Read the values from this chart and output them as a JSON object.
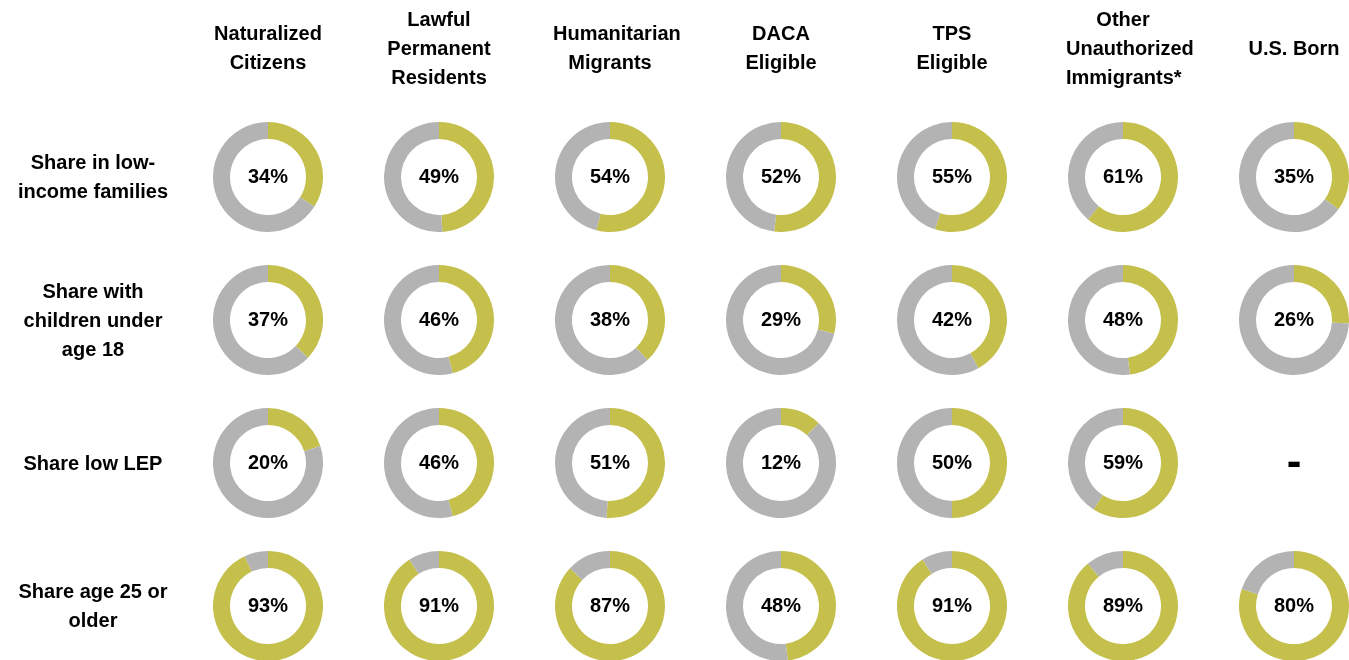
{
  "chart_data": [
    {
      "type": "donut",
      "title": "Naturalized Citizens",
      "ylabel": "Share in low-income families",
      "categories": [
        null,
        null
      ],
      "values": [
        34,
        66
      ],
      "colors": [
        "#c5bf4c",
        "#b3b3b3"
      ],
      "value_labels": [
        "34%",
        null
      ]
    },
    {
      "type": "donut",
      "title": "Lawful Permanent Residents",
      "categories": [
        null,
        null
      ],
      "values": [
        49,
        51
      ],
      "colors": [
        "#c5bf4c",
        "#b3b3b3"
      ],
      "value_labels": [
        "49%",
        null
      ]
    },
    {
      "type": "donut",
      "title": "Humanitarian Migrants",
      "categories": [
        null,
        null
      ],
      "values": [
        54,
        46
      ],
      "colors": [
        "#c5bf4c",
        "#b3b3b3"
      ],
      "value_labels": [
        "54%",
        null
      ]
    },
    {
      "type": "donut",
      "title": "DACA Eligible",
      "categories": [
        null,
        null
      ],
      "values": [
        52,
        48
      ],
      "colors": [
        "#c5bf4c",
        "#b3b3b3"
      ],
      "value_labels": [
        "52%",
        null
      ]
    },
    {
      "type": "donut",
      "title": "TPS Eligible",
      "categories": [
        null,
        null
      ],
      "values": [
        55,
        45
      ],
      "colors": [
        "#c5bf4c",
        "#b3b3b3"
      ],
      "value_labels": [
        "55%",
        null
      ]
    },
    {
      "type": "donut",
      "title": "Other Unauthorized Immigrants*",
      "categories": [
        null,
        null
      ],
      "values": [
        61,
        39
      ],
      "colors": [
        "#c5bf4c",
        "#b3b3b3"
      ],
      "value_labels": [
        "61%",
        null
      ]
    },
    {
      "type": "donut",
      "title": "U.S. Born",
      "categories": [
        null,
        null
      ],
      "values": [
        35,
        65
      ],
      "colors": [
        "#c5bf4c",
        "#b3b3b3"
      ],
      "value_labels": [
        "35%",
        null
      ]
    },
    {
      "type": "donut",
      "ylabel": "Share with children under age 18",
      "categories": [
        null,
        null
      ],
      "values": [
        37,
        63
      ],
      "colors": [
        "#c5bf4c",
        "#b3b3b3"
      ],
      "value_labels": [
        "37%",
        null
      ]
    },
    {
      "type": "donut",
      "categories": [
        null,
        null
      ],
      "values": [
        46,
        54
      ],
      "colors": [
        "#c5bf4c",
        "#b3b3b3"
      ],
      "value_labels": [
        "46%",
        null
      ]
    },
    {
      "type": "donut",
      "categories": [
        null,
        null
      ],
      "values": [
        38,
        62
      ],
      "colors": [
        "#c5bf4c",
        "#b3b3b3"
      ],
      "value_labels": [
        "38%",
        null
      ]
    },
    {
      "type": "donut",
      "categories": [
        null,
        null
      ],
      "values": [
        29,
        71
      ],
      "colors": [
        "#c5bf4c",
        "#b3b3b3"
      ],
      "value_labels": [
        "29%",
        null
      ]
    },
    {
      "type": "donut",
      "categories": [
        null,
        null
      ],
      "values": [
        42,
        58
      ],
      "colors": [
        "#c5bf4c",
        "#b3b3b3"
      ],
      "value_labels": [
        "42%",
        null
      ]
    },
    {
      "type": "donut",
      "categories": [
        null,
        null
      ],
      "values": [
        48,
        52
      ],
      "colors": [
        "#c5bf4c",
        "#b3b3b3"
      ],
      "value_labels": [
        "48%",
        null
      ]
    },
    {
      "type": "donut",
      "categories": [
        null,
        null
      ],
      "values": [
        26,
        74
      ],
      "colors": [
        "#c5bf4c",
        "#b3b3b3"
      ],
      "value_labels": [
        "26%",
        null
      ]
    },
    {
      "type": "donut",
      "ylabel": "Share low LEP",
      "categories": [
        null,
        null
      ],
      "values": [
        20,
        80
      ],
      "colors": [
        "#c5bf4c",
        "#b3b3b3"
      ],
      "value_labels": [
        "20%",
        null
      ]
    },
    {
      "type": "donut",
      "categories": [
        null,
        null
      ],
      "values": [
        46,
        54
      ],
      "colors": [
        "#c5bf4c",
        "#b3b3b3"
      ],
      "value_labels": [
        "46%",
        null
      ]
    },
    {
      "type": "donut",
      "categories": [
        null,
        null
      ],
      "values": [
        51,
        49
      ],
      "colors": [
        "#c5bf4c",
        "#b3b3b3"
      ],
      "value_labels": [
        "51%",
        null
      ]
    },
    {
      "type": "donut",
      "categories": [
        null,
        null
      ],
      "values": [
        12,
        88
      ],
      "colors": [
        "#c5bf4c",
        "#b3b3b3"
      ],
      "value_labels": [
        "12%",
        null
      ]
    },
    {
      "type": "donut",
      "categories": [
        null,
        null
      ],
      "values": [
        50,
        50
      ],
      "colors": [
        "#c5bf4c",
        "#b3b3b3"
      ],
      "value_labels": [
        "50%",
        null
      ]
    },
    {
      "type": "donut",
      "categories": [
        null,
        null
      ],
      "values": [
        59,
        41
      ],
      "colors": [
        "#c5bf4c",
        "#b3b3b3"
      ],
      "value_labels": [
        "59%",
        null
      ]
    },
    {
      "type": "other",
      "annotations": [
        "-"
      ]
    },
    {
      "type": "donut",
      "ylabel": "Share age 25 or older",
      "categories": [
        null,
        null
      ],
      "values": [
        93,
        7
      ],
      "colors": [
        "#c5bf4c",
        "#b3b3b3"
      ],
      "value_labels": [
        "93%",
        null
      ]
    },
    {
      "type": "donut",
      "categories": [
        null,
        null
      ],
      "values": [
        91,
        9
      ],
      "colors": [
        "#c5bf4c",
        "#b3b3b3"
      ],
      "value_labels": [
        "91%",
        null
      ]
    },
    {
      "type": "donut",
      "categories": [
        null,
        null
      ],
      "values": [
        87,
        13
      ],
      "colors": [
        "#c5bf4c",
        "#b3b3b3"
      ],
      "value_labels": [
        "87%",
        null
      ]
    },
    {
      "type": "donut",
      "categories": [
        null,
        null
      ],
      "values": [
        48,
        52
      ],
      "colors": [
        "#c5bf4c",
        "#b3b3b3"
      ],
      "value_labels": [
        "48%",
        null
      ]
    },
    {
      "type": "donut",
      "categories": [
        null,
        null
      ],
      "values": [
        91,
        9
      ],
      "colors": [
        "#c5bf4c",
        "#b3b3b3"
      ],
      "value_labels": [
        "91%",
        null
      ]
    },
    {
      "type": "donut",
      "categories": [
        null,
        null
      ],
      "values": [
        89,
        11
      ],
      "colors": [
        "#c5bf4c",
        "#b3b3b3"
      ],
      "value_labels": [
        "89%",
        null
      ]
    },
    {
      "type": "donut",
      "categories": [
        null,
        null
      ],
      "values": [
        80,
        20
      ],
      "colors": [
        "#c5bf4c",
        "#b3b3b3"
      ],
      "value_labels": [
        "80%",
        null
      ]
    }
  ]
}
